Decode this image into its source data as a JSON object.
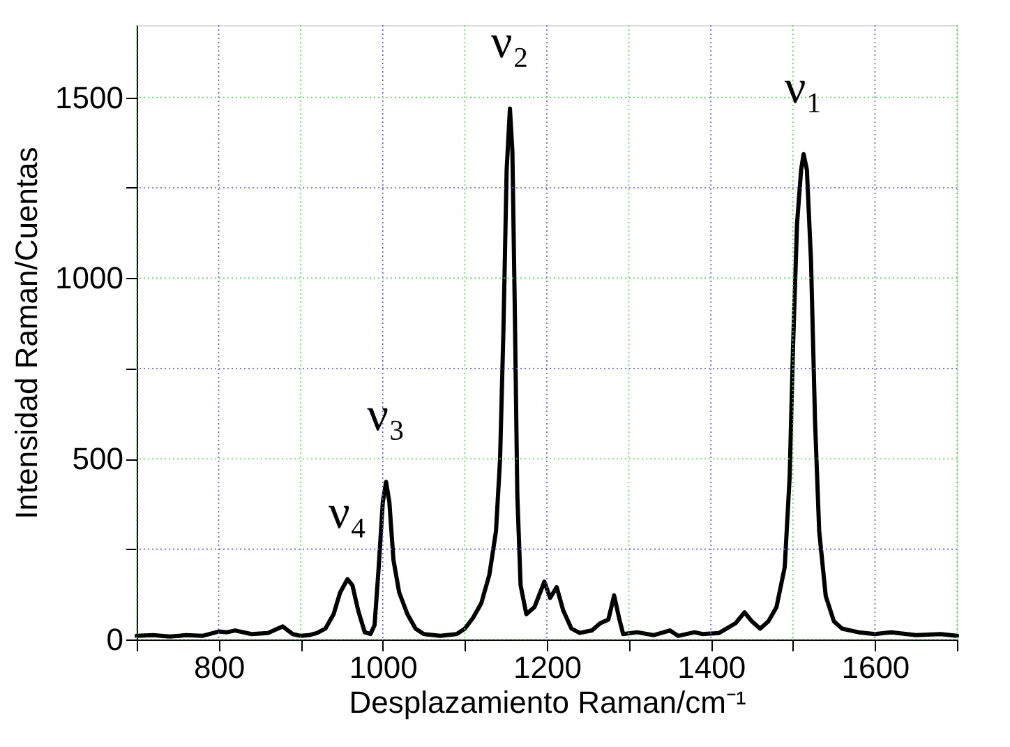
{
  "chart_data": {
    "type": "line",
    "xlabel": "Desplazamiento Raman/cm⁻¹",
    "ylabel": "Intensidad Raman/Cuentas",
    "xlim": [
      700,
      1700
    ],
    "ylim": [
      0,
      1700
    ],
    "xticks": [
      {
        "value": 700,
        "label": null
      },
      800,
      {
        "value": 900,
        "label": null
      },
      1000,
      {
        "value": 1100,
        "label": null
      },
      1200,
      {
        "value": 1300,
        "label": null
      },
      1400,
      {
        "value": 1500,
        "label": null
      },
      1600,
      {
        "value": 1700,
        "label": null
      }
    ],
    "yticks": [
      0,
      {
        "value": 250,
        "label": null
      },
      500,
      {
        "value": 750,
        "label": null
      },
      1000,
      {
        "value": 1250,
        "label": null
      },
      1500
    ],
    "grid": true,
    "marker": "none",
    "line_style": "solid",
    "annotations": [
      {
        "text": "ν₄",
        "x": 957,
        "y": 167
      },
      {
        "text": "ν₃",
        "x": 1004,
        "y": 436
      },
      {
        "text": "ν₂",
        "x": 1155,
        "y": 1469
      },
      {
        "text": "ν₁",
        "x": 1513,
        "y": 1343
      }
    ],
    "series": [
      {
        "color": "#000000",
        "x": [
          700,
          720,
          740,
          760,
          780,
          800,
          810,
          820,
          840,
          860,
          878,
          890,
          900,
          910,
          920,
          930,
          940,
          948,
          957,
          963,
          970,
          978,
          985,
          990,
          995,
          1000,
          1004,
          1008,
          1013,
          1020,
          1030,
          1040,
          1050,
          1070,
          1090,
          1100,
          1110,
          1120,
          1130,
          1138,
          1143,
          1147,
          1151,
          1155,
          1158,
          1161,
          1164,
          1168,
          1175,
          1185,
          1197,
          1204,
          1212,
          1220,
          1230,
          1240,
          1255,
          1265,
          1275,
          1282,
          1288,
          1293,
          1310,
          1330,
          1350,
          1360,
          1380,
          1390,
          1410,
          1430,
          1441,
          1450,
          1460,
          1470,
          1480,
          1490,
          1496,
          1500,
          1505,
          1510,
          1513,
          1517,
          1522,
          1527,
          1532,
          1540,
          1550,
          1560,
          1580,
          1600,
          1620,
          1650,
          1680,
          1700
        ],
        "values": [
          10,
          12,
          8,
          12,
          10,
          22,
          20,
          25,
          15,
          18,
          36,
          15,
          10,
          12,
          18,
          30,
          70,
          130,
          167,
          150,
          80,
          20,
          15,
          40,
          200,
          380,
          436,
          380,
          220,
          130,
          70,
          30,
          15,
          10,
          15,
          30,
          60,
          100,
          180,
          300,
          500,
          850,
          1300,
          1469,
          1350,
          900,
          400,
          150,
          70,
          90,
          160,
          115,
          145,
          80,
          30,
          18,
          25,
          45,
          55,
          122,
          60,
          15,
          20,
          12,
          25,
          10,
          20,
          15,
          18,
          45,
          75,
          50,
          30,
          50,
          90,
          200,
          450,
          800,
          1150,
          1300,
          1343,
          1300,
          1050,
          600,
          300,
          120,
          50,
          30,
          20,
          15,
          20,
          12,
          15,
          10
        ]
      }
    ]
  }
}
